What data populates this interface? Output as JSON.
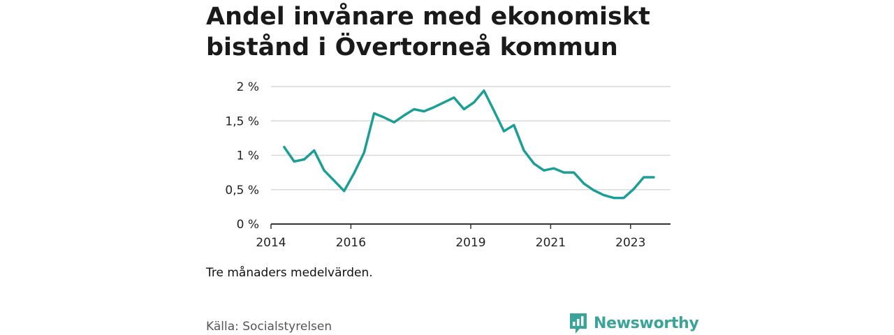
{
  "title": "Andel invånare med ekonomiskt bistånd i Övertorneå kommun",
  "note": "Tre månaders medelvärden.",
  "source": "Källa: Socialstyrelsen",
  "brand": "Newsworthy",
  "colors": {
    "line": "#1a9e96",
    "grid": "#d9d9d9",
    "axis": "#333333",
    "brand": "#3aa39a"
  },
  "chart_data": {
    "type": "line",
    "title": "Andel invånare med ekonomiskt bistånd i Övertorneå kommun",
    "xlabel": "",
    "ylabel": "",
    "x_ticks": [
      2014,
      2016,
      2019,
      2021,
      2023
    ],
    "y_ticks": [
      "0 %",
      "0,5 %",
      "1 %",
      "1,5 %",
      "2 %"
    ],
    "y_tick_values": [
      0,
      0.5,
      1,
      1.5,
      2
    ],
    "xlim": [
      2014.0,
      2024.0
    ],
    "ylim": [
      0,
      2
    ],
    "grid": "horizontal",
    "legend": "none",
    "series": [
      {
        "values": [
          [
            2014.33,
            1.12
          ],
          [
            2014.58,
            0.91
          ],
          [
            2014.83,
            0.94
          ],
          [
            2015.08,
            1.07
          ],
          [
            2015.33,
            0.78
          ],
          [
            2015.58,
            0.63
          ],
          [
            2015.83,
            0.48
          ],
          [
            2016.08,
            0.74
          ],
          [
            2016.33,
            1.04
          ],
          [
            2016.58,
            1.61
          ],
          [
            2016.83,
            1.55
          ],
          [
            2017.08,
            1.48
          ],
          [
            2017.33,
            1.58
          ],
          [
            2017.58,
            1.67
          ],
          [
            2017.83,
            1.64
          ],
          [
            2018.08,
            1.7
          ],
          [
            2018.33,
            1.77
          ],
          [
            2018.58,
            1.84
          ],
          [
            2018.83,
            1.67
          ],
          [
            2019.08,
            1.77
          ],
          [
            2019.33,
            1.94
          ],
          [
            2019.58,
            1.65
          ],
          [
            2019.83,
            1.35
          ],
          [
            2020.08,
            1.44
          ],
          [
            2020.33,
            1.07
          ],
          [
            2020.58,
            0.88
          ],
          [
            2020.83,
            0.78
          ],
          [
            2021.08,
            0.81
          ],
          [
            2021.33,
            0.75
          ],
          [
            2021.58,
            0.75
          ],
          [
            2021.83,
            0.59
          ],
          [
            2022.08,
            0.49
          ],
          [
            2022.33,
            0.42
          ],
          [
            2022.58,
            0.38
          ],
          [
            2022.83,
            0.38
          ],
          [
            2023.08,
            0.51
          ],
          [
            2023.33,
            0.68
          ],
          [
            2023.58,
            0.68
          ]
        ]
      }
    ]
  }
}
